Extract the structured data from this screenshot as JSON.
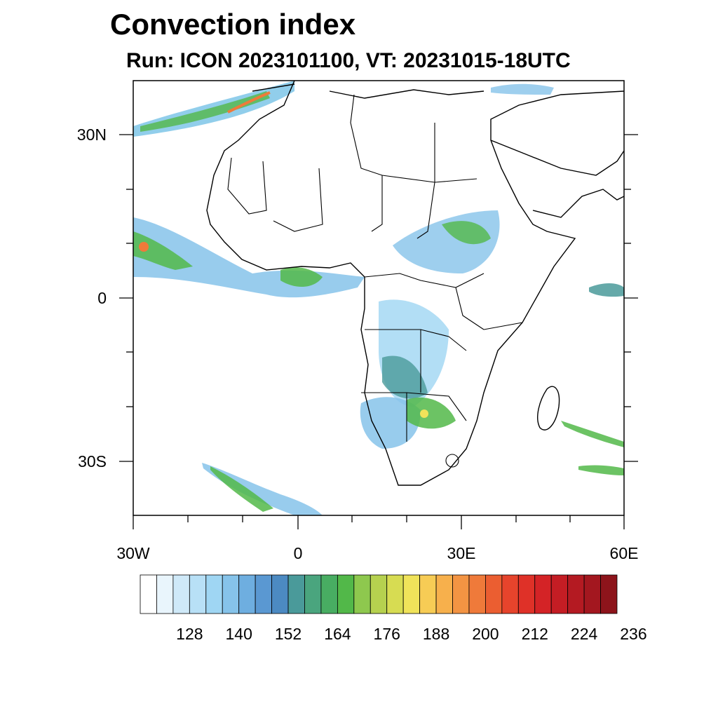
{
  "title": "Convection index",
  "subtitle": "Run: ICON 2023101100,  VT: 20231015-18UTC",
  "map": {
    "lat_labels": [
      "30N",
      "0",
      "30S"
    ],
    "lon_labels": [
      "30W",
      "0",
      "30E",
      "60E"
    ]
  },
  "colorbar": {
    "colors": [
      "#ffffff",
      "#e9f5fc",
      "#cfe9f8",
      "#b8e0f6",
      "#9fd6f3",
      "#86c3ea",
      "#6eaee0",
      "#5a98d2",
      "#4c8ac2",
      "#4a9a9a",
      "#4aa57e",
      "#48ad62",
      "#52b849",
      "#8ec84e",
      "#b6d14f",
      "#d7dc52",
      "#f0e35a",
      "#f7cc55",
      "#f7b04c",
      "#f39443",
      "#ef7a3a",
      "#eb5e31",
      "#e6442c",
      "#df3128",
      "#d42326",
      "#c41d24",
      "#b41a22",
      "#a3171f",
      "#8d141b"
    ],
    "labels": [
      "128",
      "140",
      "152",
      "164",
      "176",
      "188",
      "200",
      "212",
      "224",
      "236"
    ]
  }
}
